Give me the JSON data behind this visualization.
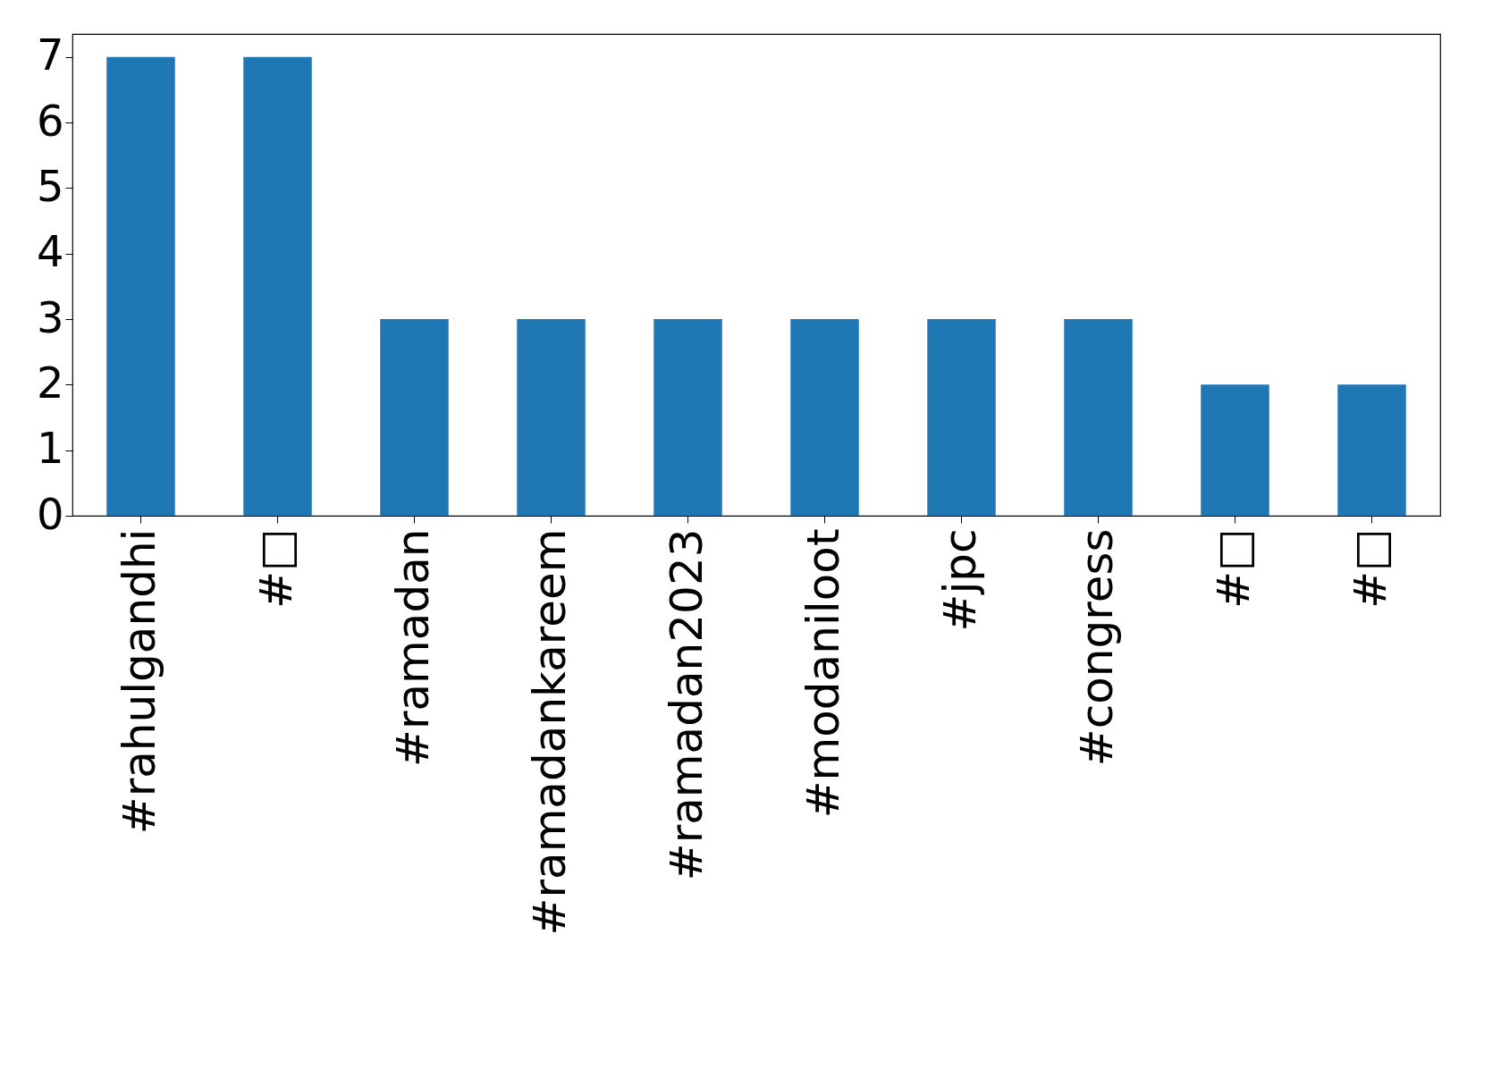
{
  "chart_data": {
    "type": "bar",
    "categories": [
      "#rahulgandhi",
      "#□",
      "#ramadan",
      "#ramadankareem",
      "#ramadan2023",
      "#modaniloot",
      "#jpc",
      "#congress",
      "#□",
      "#□"
    ],
    "values": [
      7,
      7,
      3,
      3,
      3,
      3,
      3,
      3,
      2,
      2
    ],
    "color": "#1f77b4",
    "ylim": [
      0,
      7.35
    ],
    "yticks": [
      0,
      1,
      2,
      3,
      4,
      5,
      6,
      7
    ],
    "grid": false
  }
}
